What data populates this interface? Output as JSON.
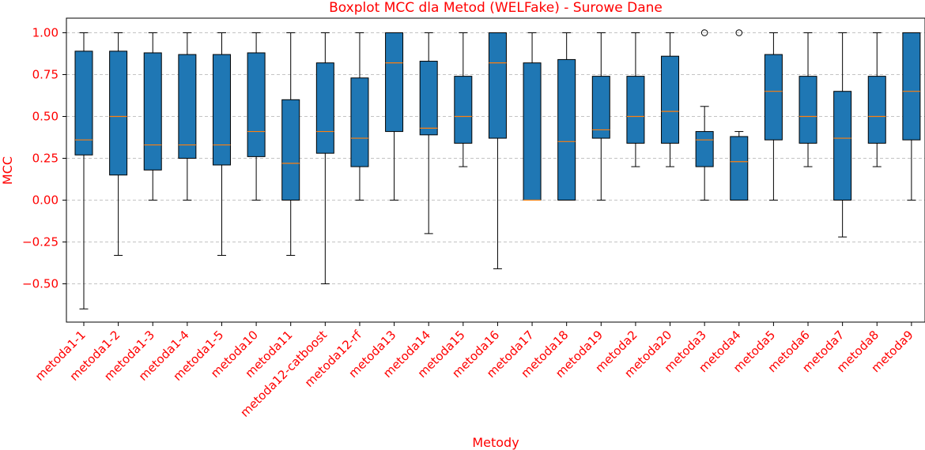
{
  "chart_data": {
    "type": "boxplot",
    "title": "Boxplot MCC dla Metod (WELFake) - Surowe Dane",
    "xlabel": "Metody",
    "ylabel": "MCC",
    "ylim": [
      -0.75,
      1.08
    ],
    "yticks": [
      "−0.50",
      "−0.25",
      "0.00",
      "0.25",
      "0.50",
      "0.75",
      "1.00"
    ],
    "ytick_values": [
      -0.5,
      -0.25,
      0,
      0.25,
      0.5,
      0.75,
      1.0
    ],
    "grid": "y-dashed",
    "colors": {
      "box_fill": "#1f77b4",
      "median": "#ff7f0e",
      "text": "#ff0000"
    },
    "categories": [
      "metoda1-1",
      "metoda1-2",
      "metoda1-3",
      "metoda1-4",
      "metoda1-5",
      "metoda10",
      "metoda11",
      "metoda12-catboost",
      "metoda12-rf",
      "metoda13",
      "metoda14",
      "metoda15",
      "metoda16",
      "metoda17",
      "metoda18",
      "metoda19",
      "metoda2",
      "metoda20",
      "metoda3",
      "metoda4",
      "metoda5",
      "metoda6",
      "metoda7",
      "metoda8",
      "metoda9"
    ],
    "boxes": [
      {
        "min": -0.65,
        "q1": 0.27,
        "median": 0.36,
        "q3": 0.89,
        "max": 1.0,
        "outliers": []
      },
      {
        "min": -0.33,
        "q1": 0.15,
        "median": 0.5,
        "q3": 0.89,
        "max": 1.0,
        "outliers": []
      },
      {
        "min": 0.0,
        "q1": 0.18,
        "median": 0.33,
        "q3": 0.88,
        "max": 1.0,
        "outliers": []
      },
      {
        "min": 0.0,
        "q1": 0.25,
        "median": 0.33,
        "q3": 0.87,
        "max": 1.0,
        "outliers": []
      },
      {
        "min": -0.33,
        "q1": 0.21,
        "median": 0.33,
        "q3": 0.87,
        "max": 1.0,
        "outliers": []
      },
      {
        "min": 0.0,
        "q1": 0.26,
        "median": 0.41,
        "q3": 0.88,
        "max": 1.0,
        "outliers": []
      },
      {
        "min": -0.33,
        "q1": 0.0,
        "median": 0.22,
        "q3": 0.6,
        "max": 1.0,
        "outliers": []
      },
      {
        "min": -0.5,
        "q1": 0.28,
        "median": 0.41,
        "q3": 0.82,
        "max": 1.0,
        "outliers": []
      },
      {
        "min": 0.0,
        "q1": 0.2,
        "median": 0.37,
        "q3": 0.73,
        "max": 1.0,
        "outliers": []
      },
      {
        "min": 0.0,
        "q1": 0.41,
        "median": 0.82,
        "q3": 1.0,
        "max": 1.0,
        "outliers": []
      },
      {
        "min": -0.2,
        "q1": 0.39,
        "median": 0.43,
        "q3": 0.83,
        "max": 1.0,
        "outliers": []
      },
      {
        "min": 0.2,
        "q1": 0.34,
        "median": 0.5,
        "q3": 0.74,
        "max": 1.0,
        "outliers": []
      },
      {
        "min": -0.41,
        "q1": 0.37,
        "median": 0.82,
        "q3": 1.0,
        "max": 1.0,
        "outliers": []
      },
      {
        "min": 0.0,
        "q1": 0.0,
        "median": 0.0,
        "q3": 0.82,
        "max": 1.0,
        "outliers": []
      },
      {
        "min": 0.0,
        "q1": 0.0,
        "median": 0.35,
        "q3": 0.84,
        "max": 1.0,
        "outliers": []
      },
      {
        "min": 0.0,
        "q1": 0.37,
        "median": 0.42,
        "q3": 0.74,
        "max": 1.0,
        "outliers": []
      },
      {
        "min": 0.2,
        "q1": 0.34,
        "median": 0.5,
        "q3": 0.74,
        "max": 1.0,
        "outliers": []
      },
      {
        "min": 0.2,
        "q1": 0.34,
        "median": 0.53,
        "q3": 0.86,
        "max": 1.0,
        "outliers": []
      },
      {
        "min": 0.0,
        "q1": 0.2,
        "median": 0.36,
        "q3": 0.41,
        "max": 0.56,
        "outliers": [
          1.0
        ]
      },
      {
        "min": 0.0,
        "q1": 0.0,
        "median": 0.23,
        "q3": 0.38,
        "max": 0.41,
        "outliers": [
          1.0
        ]
      },
      {
        "min": 0.0,
        "q1": 0.36,
        "median": 0.65,
        "q3": 0.87,
        "max": 1.0,
        "outliers": []
      },
      {
        "min": 0.2,
        "q1": 0.34,
        "median": 0.5,
        "q3": 0.74,
        "max": 1.0,
        "outliers": []
      },
      {
        "min": -0.22,
        "q1": 0.0,
        "median": 0.37,
        "q3": 0.65,
        "max": 1.0,
        "outliers": []
      },
      {
        "min": 0.2,
        "q1": 0.34,
        "median": 0.5,
        "q3": 0.74,
        "max": 1.0,
        "outliers": []
      },
      {
        "min": 0.0,
        "q1": 0.36,
        "median": 0.65,
        "q3": 1.0,
        "max": 1.0,
        "outliers": []
      }
    ]
  }
}
